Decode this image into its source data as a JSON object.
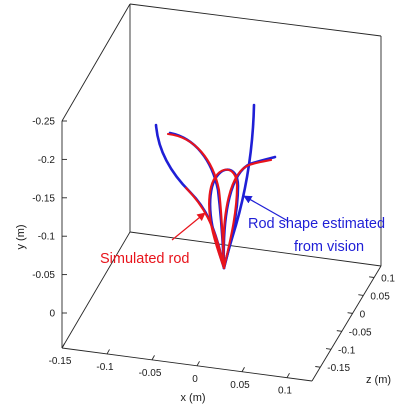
{
  "chart_data": {
    "type": "line",
    "view": "3d-axes-box",
    "grid": false,
    "legend": "none",
    "xlabel": "x (m)",
    "ylabel": "y (m)",
    "zlabel": "z (m)",
    "x_ticks": [
      "-0.15",
      "-0.1",
      "-0.05",
      "0",
      "0.05",
      "0.1"
    ],
    "y_ticks": [
      "-0.25",
      "-0.2",
      "-0.15",
      "-0.1",
      "-0.05",
      "0"
    ],
    "z_ticks": [
      "0.1",
      "0.05",
      "0",
      "-0.05",
      "-0.1",
      "-0.15"
    ],
    "series": [
      {
        "color": "#1f1fd6"
      },
      {
        "color": "#e8141c"
      }
    ],
    "annotations": [
      {
        "lines": [
          "Simulated rod"
        ],
        "color": "#e8141c"
      },
      {
        "lines": [
          "Rod shape estimated",
          "from vision"
        ],
        "color": "#1f1fd6"
      }
    ]
  }
}
